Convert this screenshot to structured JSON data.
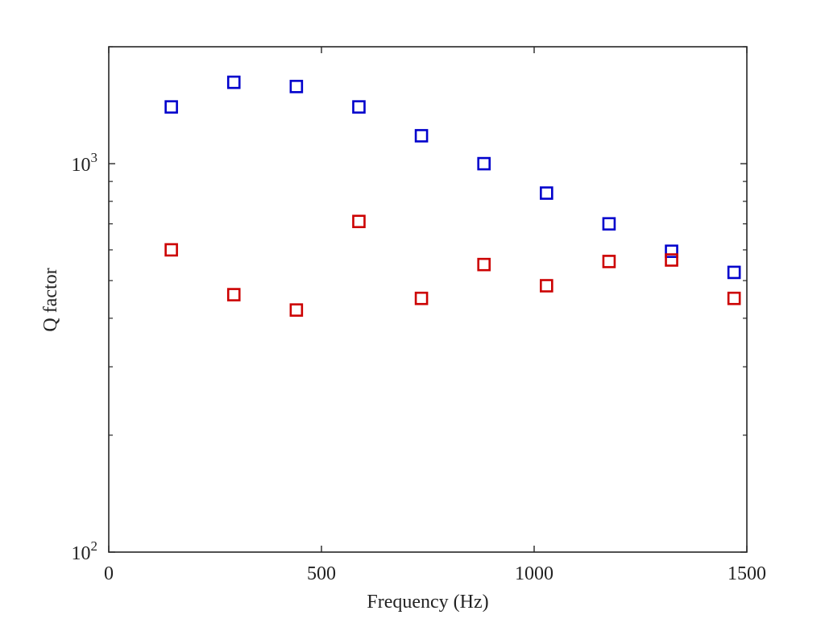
{
  "chart_data": {
    "type": "scatter",
    "xlabel": "Frequency (Hz)",
    "ylabel": "Q factor",
    "xlim": [
      0,
      1500
    ],
    "ylim": [
      100,
      2000
    ],
    "yscale": "log",
    "grid": false,
    "x_ticks": [
      "0",
      "500",
      "1000",
      "1500"
    ],
    "y_ticks": [
      {
        "base": "10",
        "exp": "2",
        "value": 100
      },
      {
        "base": "10",
        "exp": "3",
        "value": 1000
      }
    ],
    "series": [
      {
        "color": "#0000cc",
        "marker": "square",
        "x": [
          147,
          294,
          441,
          588,
          735,
          882,
          1029,
          1176,
          1323,
          1470
        ],
        "y": [
          1400,
          1620,
          1580,
          1400,
          1180,
          1000,
          840,
          700,
          595,
          525
        ]
      },
      {
        "color": "#cc0000",
        "marker": "square",
        "x": [
          147,
          294,
          441,
          588,
          735,
          882,
          1029,
          1176,
          1323,
          1470
        ],
        "y": [
          600,
          460,
          420,
          710,
          450,
          550,
          485,
          560,
          565,
          450
        ]
      }
    ]
  }
}
